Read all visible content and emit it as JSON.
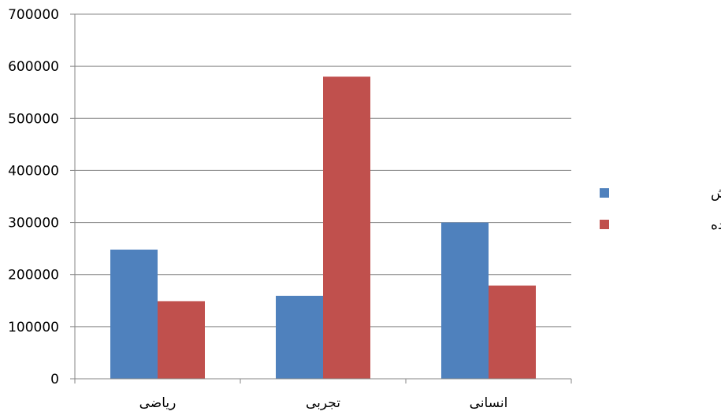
{
  "chart_data": {
    "type": "bar",
    "categories": [
      "ریاضی",
      "تجربی",
      "انسانی"
    ],
    "series": [
      {
        "name": "ظرفیت پذیرش",
        "color": "#4F81BD",
        "values": [
          248000,
          159000,
          300000
        ]
      },
      {
        "name": "تعداد شرکت کننده",
        "color": "#C0504D",
        "values": [
          149000,
          580000,
          179000
        ]
      }
    ],
    "ylim": [
      0,
      700000
    ],
    "yticks": [
      "0",
      "100000",
      "200000",
      "300000",
      "400000",
      "500000",
      "600000",
      "700000"
    ],
    "grid": true,
    "legend_position": "right"
  }
}
